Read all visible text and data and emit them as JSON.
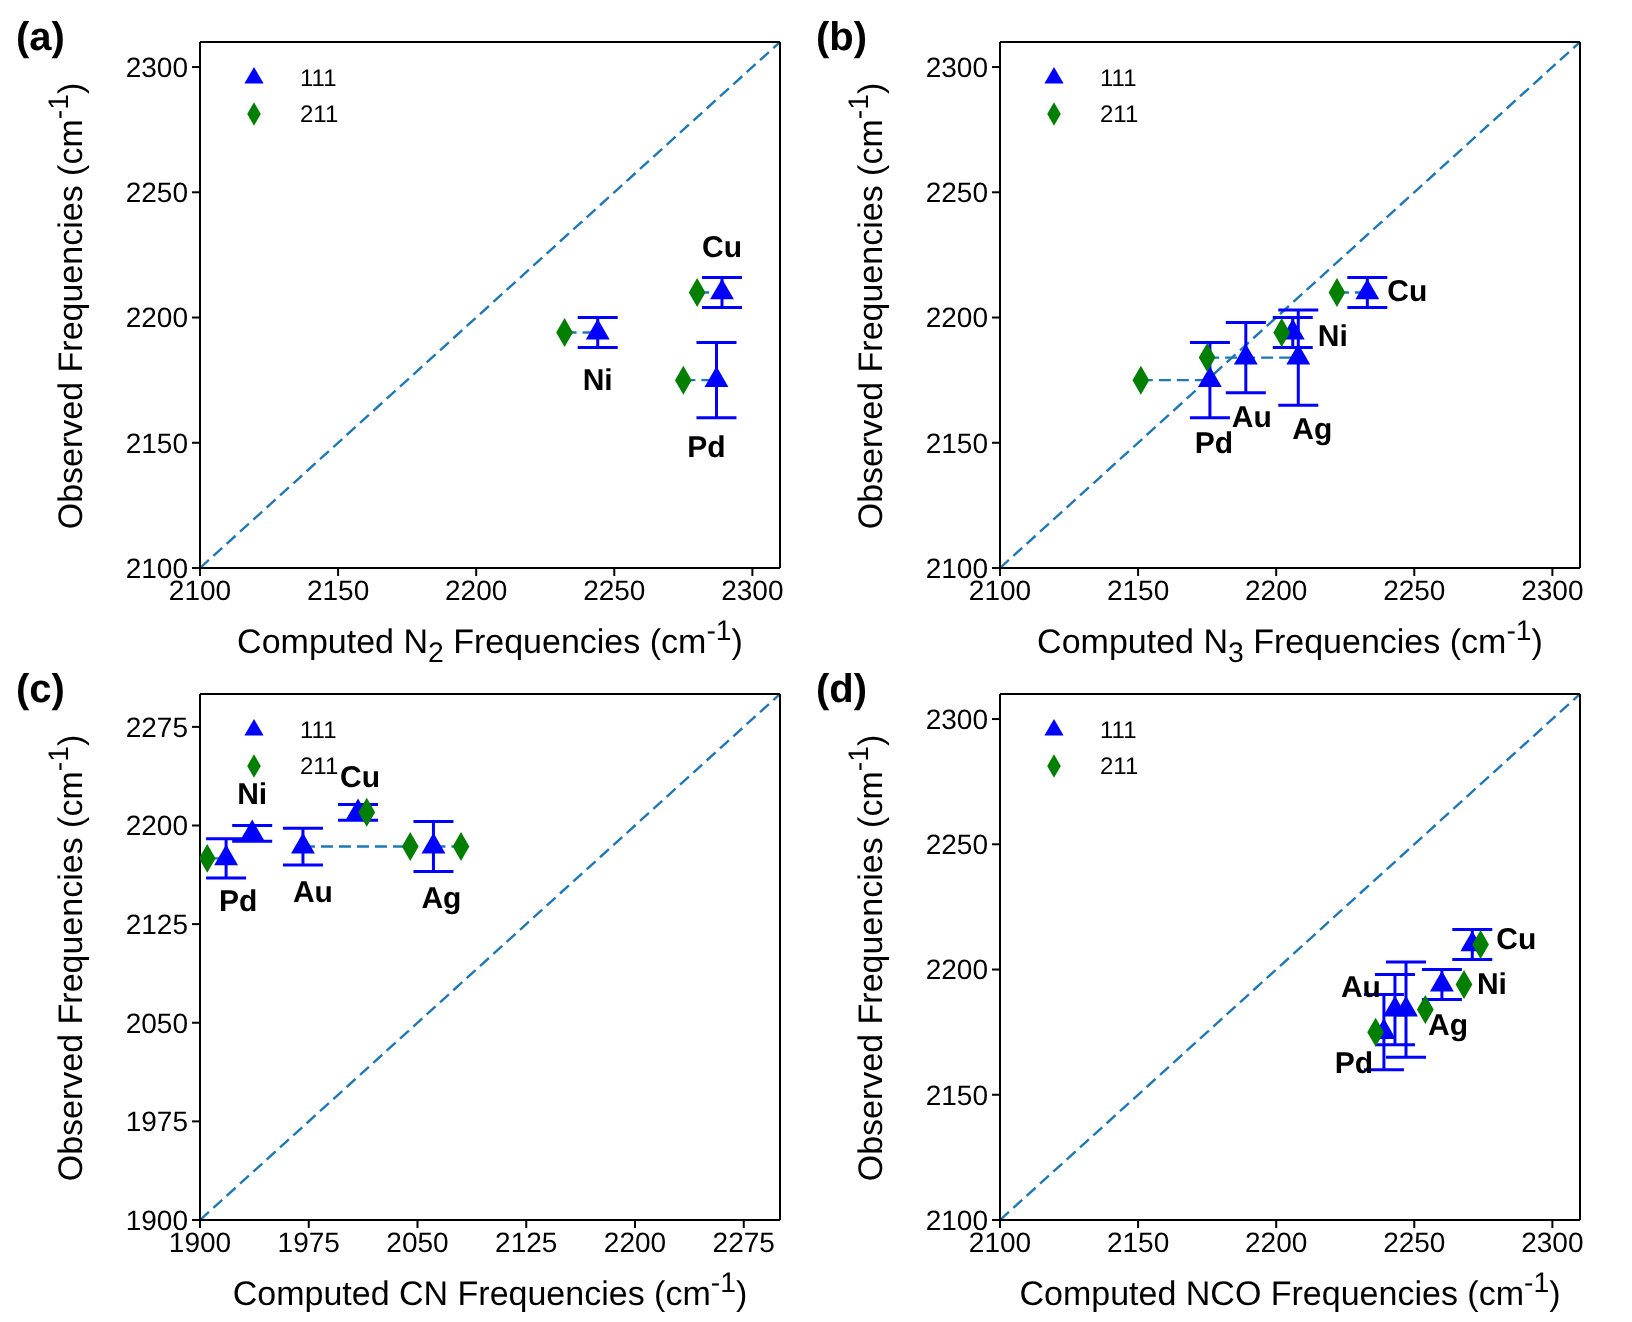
{
  "chart_data": [
    {
      "type": "scatter",
      "title": "(a)",
      "xlabel": "Computed N$_{2}$ Frequencies (cm$^{-1}$)",
      "ylabel": "Observed Frequencies (cm$^{-1}$)",
      "xlim": [
        2100,
        2310
      ],
      "ylim": [
        2100,
        2310
      ],
      "xticks": [
        2100,
        2150,
        2200,
        2250,
        2300
      ],
      "yticks": [
        2100,
        2150,
        2200,
        2250,
        2300
      ],
      "legend": "top left",
      "series": [
        {
          "type": "line",
          "color": "#1f77b4",
          "line_style": "dashed",
          "marker": "none",
          "x": [
            2100,
            2310
          ],
          "values": [
            2100,
            2310
          ]
        },
        {
          "type": "line",
          "color": "#1f77b4",
          "line_style": "dashed",
          "marker": "none",
          "x": [
            2280,
            2289
          ],
          "values": [
            2210,
            2210
          ]
        },
        {
          "type": "line",
          "color": "#1f77b4",
          "line_style": "dashed",
          "marker": "none",
          "x": [
            2232,
            2244
          ],
          "values": [
            2194,
            2194
          ]
        },
        {
          "type": "line",
          "color": "#1f77b4",
          "line_style": "dashed",
          "marker": "none",
          "x": [
            2275,
            2287
          ],
          "values": [
            2175,
            2175
          ]
        },
        {
          "type": "scatter",
          "name": "111",
          "color": "#0000ff",
          "marker": "triangle",
          "x": [
            2289,
            2244,
            2287
          ],
          "values": [
            2210,
            2194,
            2175
          ],
          "errors": [
            6,
            6,
            15
          ]
        },
        {
          "type": "scatter",
          "name": "211",
          "color": "#007f00",
          "marker": "diamond",
          "x": [
            2280,
            2232,
            2275
          ],
          "values": [
            2210,
            2194,
            2175
          ]
        }
      ],
      "annotations": [
        {
          "text": "Cu",
          "x": 2289,
          "y": 2210
        },
        {
          "text": "Ni",
          "x": 2244,
          "y": 2194
        },
        {
          "text": "Pd",
          "x": 2287,
          "y": 2175
        }
      ]
    },
    {
      "type": "scatter",
      "title": "(b)",
      "xlabel": "Computed N$_{3}$ Frequencies (cm$^{-1}$)",
      "ylabel": "Observed Frequencies (cm$^{-1}$)",
      "xlim": [
        2100,
        2310
      ],
      "ylim": [
        2100,
        2310
      ],
      "xticks": [
        2100,
        2150,
        2200,
        2250,
        2300
      ],
      "yticks": [
        2100,
        2150,
        2200,
        2250,
        2300
      ],
      "legend": "top left",
      "series": [
        {
          "type": "line",
          "color": "#1f77b4",
          "line_style": "dashed",
          "marker": "none",
          "x": [
            2100,
            2310
          ],
          "values": [
            2100,
            2310
          ]
        },
        {
          "type": "line",
          "color": "#1f77b4",
          "line_style": "dashed",
          "marker": "none",
          "x": [
            2222,
            2233
          ],
          "values": [
            2210,
            2210
          ]
        },
        {
          "type": "line",
          "color": "#1f77b4",
          "line_style": "dashed",
          "marker": "none",
          "x": [
            2151,
            2176
          ],
          "values": [
            2175,
            2175
          ]
        },
        {
          "type": "line",
          "color": "#1f77b4",
          "line_style": "dashed",
          "marker": "none",
          "x": [
            2175,
            2208
          ],
          "values": [
            2184,
            2184
          ]
        },
        {
          "type": "scatter",
          "name": "111",
          "color": "#0000ff",
          "marker": "triangle",
          "x": [
            2233,
            2206,
            2176,
            2189,
            2208
          ],
          "values": [
            2210,
            2194,
            2175,
            2184,
            2184
          ],
          "errors": [
            6,
            6,
            15,
            14,
            19
          ]
        },
        {
          "type": "scatter",
          "name": "211",
          "color": "#007f00",
          "marker": "diamond",
          "x": [
            2222,
            2202,
            2151,
            null,
            2175
          ],
          "values": [
            2210,
            2194,
            2175,
            null,
            2184
          ]
        }
      ],
      "annotations": [
        {
          "text": "Cu",
          "x": 2233,
          "y": 2210
        },
        {
          "text": "Ni",
          "x": 2206,
          "y": 2194
        },
        {
          "text": "Pd",
          "x": 2176,
          "y": 2175
        },
        {
          "text": "Au",
          "x": 2189,
          "y": 2184
        },
        {
          "text": "Ag",
          "x": 2208,
          "y": 2184
        }
      ]
    },
    {
      "type": "scatter",
      "title": "(c)",
      "xlabel": "Computed CN Frequencies (cm$^{-1}$)",
      "ylabel": "Observed Frequencies (cm$^{-1}$)",
      "xlim": [
        1900,
        2300
      ],
      "ylim": [
        1900,
        2300
      ],
      "xticks": [
        1900,
        1975,
        2050,
        2125,
        2200,
        2275
      ],
      "yticks": [
        1900,
        1975,
        2050,
        2125,
        2200,
        2275
      ],
      "legend": "top left",
      "series": [
        {
          "type": "line",
          "color": "#1f77b4",
          "line_style": "dashed",
          "marker": "none",
          "x": [
            1900,
            2300
          ],
          "values": [
            1900,
            2300
          ]
        },
        {
          "type": "line",
          "color": "#1f77b4",
          "line_style": "dashed",
          "marker": "none",
          "x": [
            1905,
            1918
          ],
          "values": [
            2175,
            2175
          ]
        },
        {
          "type": "line",
          "color": "#1f77b4",
          "line_style": "dashed",
          "marker": "none",
          "x": [
            1971,
            2045
          ],
          "values": [
            2184,
            2184
          ]
        },
        {
          "type": "line",
          "color": "#1f77b4",
          "line_style": "dashed",
          "marker": "none",
          "x": [
            2061,
            2080
          ],
          "values": [
            2184,
            2184
          ]
        },
        {
          "type": "scatter",
          "name": "111",
          "color": "#0000ff",
          "marker": "triangle",
          "x": [
            2009,
            1936,
            1918,
            1971,
            2061
          ],
          "values": [
            2210,
            2194,
            2175,
            2184,
            2184
          ],
          "errors": [
            6,
            6,
            15,
            14,
            19
          ]
        },
        {
          "type": "scatter",
          "name": "211",
          "color": "#007f00",
          "marker": "diamond",
          "x": [
            2015,
            null,
            1905,
            2045,
            2080
          ],
          "values": [
            2210,
            null,
            2175,
            2184,
            2184
          ]
        }
      ],
      "annotations": [
        {
          "text": "Cu",
          "x": 2009,
          "y": 2210
        },
        {
          "text": "Ni",
          "x": 1936,
          "y": 2194
        },
        {
          "text": "Pd",
          "x": 1918,
          "y": 2175
        },
        {
          "text": "Au",
          "x": 1971,
          "y": 2184
        },
        {
          "text": "Ag",
          "x": 2061,
          "y": 2184
        }
      ]
    },
    {
      "type": "scatter",
      "title": "(d)",
      "xlabel": "Computed NCO Frequencies (cm$^{-1}$)",
      "ylabel": "Observed Frequencies (cm$^{-1}$)",
      "xlim": [
        2100,
        2310
      ],
      "ylim": [
        2100,
        2310
      ],
      "xticks": [
        2100,
        2150,
        2200,
        2250,
        2300
      ],
      "yticks": [
        2100,
        2150,
        2200,
        2250,
        2300
      ],
      "legend": "top left",
      "series": [
        {
          "type": "line",
          "color": "#1f77b4",
          "line_style": "dashed",
          "marker": "none",
          "x": [
            2100,
            2310
          ],
          "values": [
            2100,
            2310
          ]
        },
        {
          "type": "scatter",
          "name": "111",
          "color": "#0000ff",
          "marker": "triangle",
          "x": [
            2271,
            2260,
            2239,
            2243,
            2247
          ],
          "values": [
            2210,
            2194,
            2175,
            2184,
            2184
          ],
          "errors": [
            6,
            6,
            15,
            14,
            19
          ]
        },
        {
          "type": "scatter",
          "name": "211",
          "color": "#007f00",
          "marker": "diamond",
          "x": [
            2274,
            2268,
            2236,
            null,
            2254
          ],
          "values": [
            2210,
            2194,
            2175,
            null,
            2184
          ]
        }
      ],
      "annotations": [
        {
          "text": "Cu",
          "x": 2271,
          "y": 2210
        },
        {
          "text": "Ni",
          "x": 2260,
          "y": 2194
        },
        {
          "text": "Pd",
          "x": 2239,
          "y": 2175
        },
        {
          "text": "Au",
          "x": 2243,
          "y": 2184
        },
        {
          "text": "Ag",
          "x": 2247,
          "y": 2184
        }
      ]
    }
  ]
}
